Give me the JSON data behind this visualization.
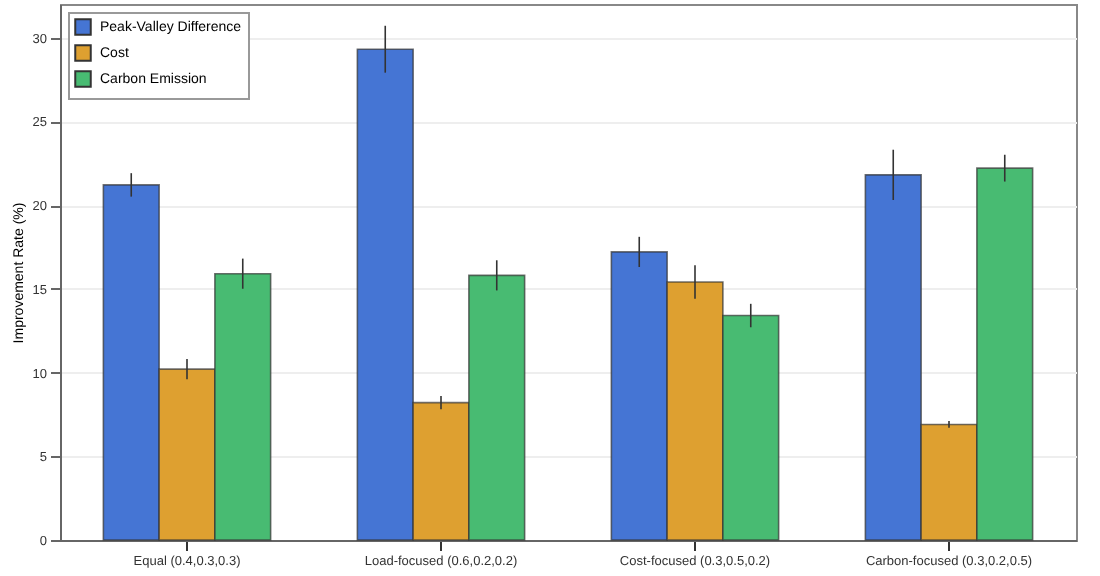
{
  "chart_data": {
    "type": "bar",
    "ylabel": "Improvement Rate (%)",
    "categories": [
      "Equal (0.4,0.3,0.3)",
      "Load-focused (0.6,0.2,0.2)",
      "Cost-focused (0.3,0.5,0.2)",
      "Carbon-focused (0.3,0.2,0.5)"
    ],
    "series": [
      {
        "name": "Peak-Valley Difference",
        "color": "#4575d4",
        "values": [
          21.2,
          29.3,
          17.2,
          21.8
        ],
        "errors": [
          0.7,
          1.4,
          0.9,
          1.5
        ]
      },
      {
        "name": "Cost",
        "color": "#dea030",
        "values": [
          10.2,
          8.2,
          15.4,
          6.9
        ],
        "errors": [
          0.6,
          0.4,
          1.0,
          0.2
        ]
      },
      {
        "name": "Carbon Emission",
        "color": "#48bb72",
        "values": [
          15.9,
          15.8,
          13.4,
          22.2
        ],
        "errors": [
          0.9,
          0.9,
          0.7,
          0.8
        ]
      }
    ],
    "ylim": [
      0,
      32
    ],
    "yticks": [
      0,
      5,
      10,
      15,
      20,
      25,
      30
    ],
    "grid": "y",
    "legend": "top left"
  }
}
